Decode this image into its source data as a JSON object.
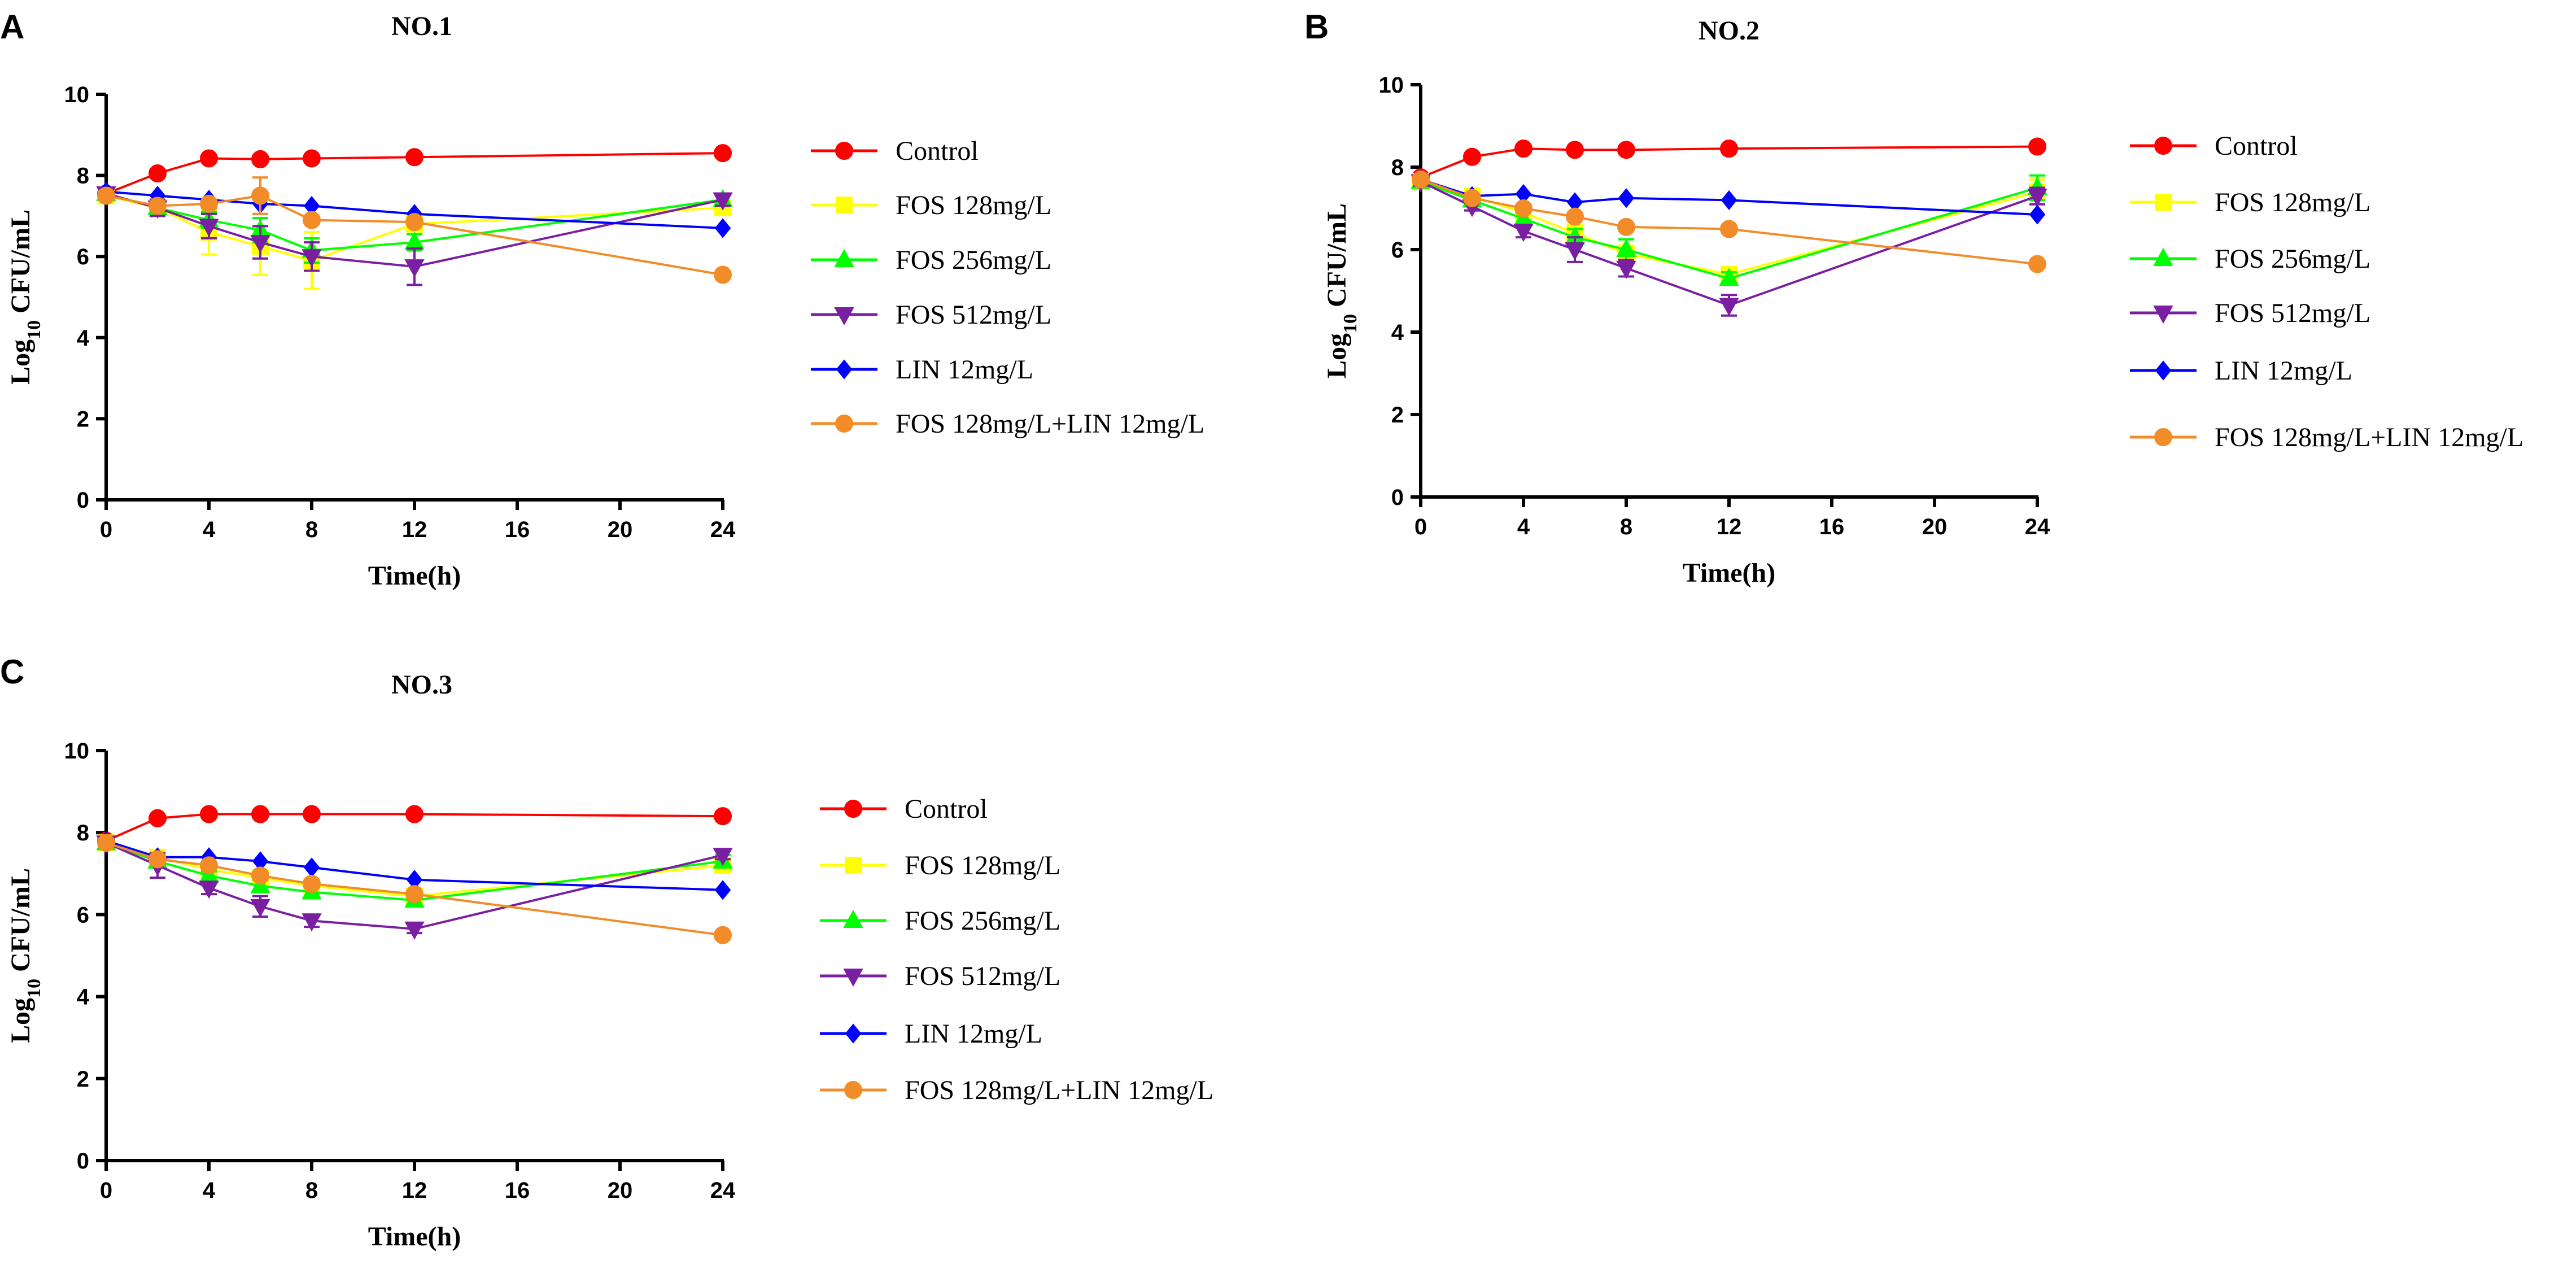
{
  "chart_data": [
    {
      "panel": "A",
      "type": "line",
      "title": "NO.1",
      "xlabel": "Time(h)",
      "ylabel_main": "Log",
      "ylabel_sub": "10",
      "ylabel_rest": " CFU/mL",
      "xlim": [
        0,
        24
      ],
      "ylim": [
        0,
        10
      ],
      "xticks": [
        0,
        4,
        8,
        12,
        16,
        20,
        24
      ],
      "yticks": [
        0,
        2,
        4,
        6,
        8,
        10
      ],
      "x": [
        0,
        2,
        4,
        6,
        8,
        12,
        24
      ],
      "series": [
        {
          "name": "Control",
          "color": "#ff0000",
          "marker": "circle",
          "values": [
            7.55,
            8.05,
            8.42,
            8.4,
            8.42,
            8.45,
            8.55
          ],
          "errors": [
            0.05,
            0.1,
            0.05,
            0.05,
            0.05,
            0.05,
            0.05
          ]
        },
        {
          "name": "FOS 128mg/L",
          "color": "#ffff00",
          "marker": "square",
          "values": [
            7.5,
            7.2,
            6.6,
            6.25,
            5.9,
            6.8,
            7.2
          ],
          "errors": [
            0.1,
            0.2,
            0.55,
            0.7,
            0.7,
            0.15,
            0.15
          ]
        },
        {
          "name": "FOS 256mg/L",
          "color": "#00ff00",
          "marker": "triangle-up",
          "values": [
            7.55,
            7.2,
            6.9,
            6.65,
            6.15,
            6.35,
            7.4
          ],
          "errors": [
            0.1,
            0.15,
            0.2,
            0.3,
            0.3,
            0.2,
            0.15
          ]
        },
        {
          "name": "FOS 512mg/L",
          "color": "#7b1fa2",
          "marker": "triangle-down",
          "values": [
            7.55,
            7.2,
            6.75,
            6.35,
            6.0,
            5.75,
            7.4
          ],
          "errors": [
            0.1,
            0.2,
            0.3,
            0.4,
            0.35,
            0.45,
            0.15
          ]
        },
        {
          "name": "LIN 12mg/L",
          "color": "#0000ff",
          "marker": "diamond",
          "values": [
            7.6,
            7.5,
            7.4,
            7.3,
            7.25,
            7.05,
            6.7
          ],
          "errors": [
            0.05,
            0.05,
            0.05,
            0.05,
            0.05,
            0.05,
            0.05
          ]
        },
        {
          "name": "FOS 128mg/L+LIN 12mg/L",
          "color": "#f28c28",
          "marker": "circle",
          "values": [
            7.5,
            7.25,
            7.3,
            7.5,
            6.9,
            6.85,
            5.55
          ],
          "errors": [
            0.05,
            0.1,
            0.1,
            0.45,
            0.1,
            0.05,
            0.05
          ]
        }
      ]
    },
    {
      "panel": "B",
      "type": "line",
      "title": "NO.2",
      "xlabel": "Time(h)",
      "ylabel_main": "Log",
      "ylabel_sub": "10",
      "ylabel_rest": " CFU/mL",
      "xlim": [
        0,
        24
      ],
      "ylim": [
        0,
        10
      ],
      "xticks": [
        0,
        4,
        8,
        12,
        16,
        20,
        24
      ],
      "yticks": [
        0,
        2,
        4,
        6,
        8,
        10
      ],
      "x": [
        0,
        2,
        4,
        6,
        8,
        12,
        24
      ],
      "series": [
        {
          "name": "Control",
          "color": "#ff0000",
          "marker": "circle",
          "values": [
            7.75,
            8.25,
            8.45,
            8.42,
            8.42,
            8.45,
            8.5
          ],
          "errors": [
            0.05,
            0.05,
            0.05,
            0.05,
            0.05,
            0.05,
            0.05
          ]
        },
        {
          "name": "FOS 128mg/L",
          "color": "#ffff00",
          "marker": "square",
          "values": [
            7.65,
            7.3,
            6.9,
            6.4,
            5.9,
            5.4,
            7.4
          ],
          "errors": [
            0.1,
            0.1,
            0.15,
            0.2,
            0.2,
            0.15,
            0.3
          ]
        },
        {
          "name": "FOS 256mg/L",
          "color": "#00ff00",
          "marker": "triangle-up",
          "values": [
            7.65,
            7.2,
            6.75,
            6.3,
            6.0,
            5.3,
            7.5
          ],
          "errors": [
            0.1,
            0.1,
            0.15,
            0.2,
            0.25,
            0.15,
            0.3
          ]
        },
        {
          "name": "FOS 512mg/L",
          "color": "#7b1fa2",
          "marker": "triangle-down",
          "values": [
            7.65,
            7.05,
            6.45,
            6.0,
            5.55,
            4.65,
            7.3
          ],
          "errors": [
            0.1,
            0.1,
            0.15,
            0.3,
            0.2,
            0.25,
            0.2
          ]
        },
        {
          "name": "LIN 12mg/L",
          "color": "#0000ff",
          "marker": "diamond",
          "values": [
            7.7,
            7.3,
            7.35,
            7.15,
            7.25,
            7.2,
            6.85
          ],
          "errors": [
            0.05,
            0.05,
            0.05,
            0.05,
            0.05,
            0.05,
            0.05
          ]
        },
        {
          "name": "FOS 128mg/L+LIN 12mg/L",
          "color": "#f28c28",
          "marker": "circle",
          "values": [
            7.7,
            7.25,
            7.0,
            6.8,
            6.55,
            6.5,
            5.65
          ],
          "errors": [
            0.05,
            0.05,
            0.05,
            0.05,
            0.05,
            0.05,
            0.05
          ]
        }
      ]
    },
    {
      "panel": "C",
      "type": "line",
      "title": "NO.3",
      "xlabel": "Time(h)",
      "ylabel_main": "Log",
      "ylabel_sub": "10",
      "ylabel_rest": " CFU/mL",
      "xlim": [
        0,
        24
      ],
      "ylim": [
        0,
        10
      ],
      "xticks": [
        0,
        4,
        8,
        12,
        16,
        20,
        24
      ],
      "yticks": [
        0,
        2,
        4,
        6,
        8,
        10
      ],
      "x": [
        0,
        2,
        4,
        6,
        8,
        12,
        24
      ],
      "series": [
        {
          "name": "Control",
          "color": "#ff0000",
          "marker": "circle",
          "values": [
            7.8,
            8.35,
            8.45,
            8.45,
            8.45,
            8.45,
            8.4
          ],
          "errors": [
            0.05,
            0.05,
            0.05,
            0.05,
            0.05,
            0.05,
            0.05
          ]
        },
        {
          "name": "FOS 128mg/L",
          "color": "#ffff00",
          "marker": "square",
          "values": [
            7.75,
            7.4,
            7.1,
            6.9,
            6.7,
            6.45,
            7.2
          ],
          "errors": [
            0.1,
            0.1,
            0.1,
            0.15,
            0.15,
            0.15,
            0.15
          ]
        },
        {
          "name": "FOS 256mg/L",
          "color": "#00ff00",
          "marker": "triangle-up",
          "values": [
            7.75,
            7.3,
            6.95,
            6.7,
            6.55,
            6.35,
            7.3
          ],
          "errors": [
            0.1,
            0.1,
            0.1,
            0.15,
            0.15,
            0.15,
            0.15
          ]
        },
        {
          "name": "FOS 512mg/L",
          "color": "#7b1fa2",
          "marker": "triangle-down",
          "values": [
            7.75,
            7.2,
            6.65,
            6.2,
            5.85,
            5.65,
            7.45
          ],
          "errors": [
            0.1,
            0.3,
            0.15,
            0.25,
            0.15,
            0.1,
            0.1
          ]
        },
        {
          "name": "LIN 12mg/L",
          "color": "#0000ff",
          "marker": "diamond",
          "values": [
            7.8,
            7.4,
            7.4,
            7.3,
            7.15,
            6.85,
            6.6
          ],
          "errors": [
            0.05,
            0.05,
            0.05,
            0.05,
            0.05,
            0.05,
            0.05
          ]
        },
        {
          "name": "FOS 128mg/L+LIN 12mg/L",
          "color": "#f28c28",
          "marker": "circle",
          "values": [
            7.75,
            7.35,
            7.2,
            6.95,
            6.75,
            6.5,
            5.5
          ],
          "errors": [
            0.05,
            0.05,
            0.05,
            0.05,
            0.05,
            0.05,
            0.05
          ]
        }
      ]
    }
  ]
}
